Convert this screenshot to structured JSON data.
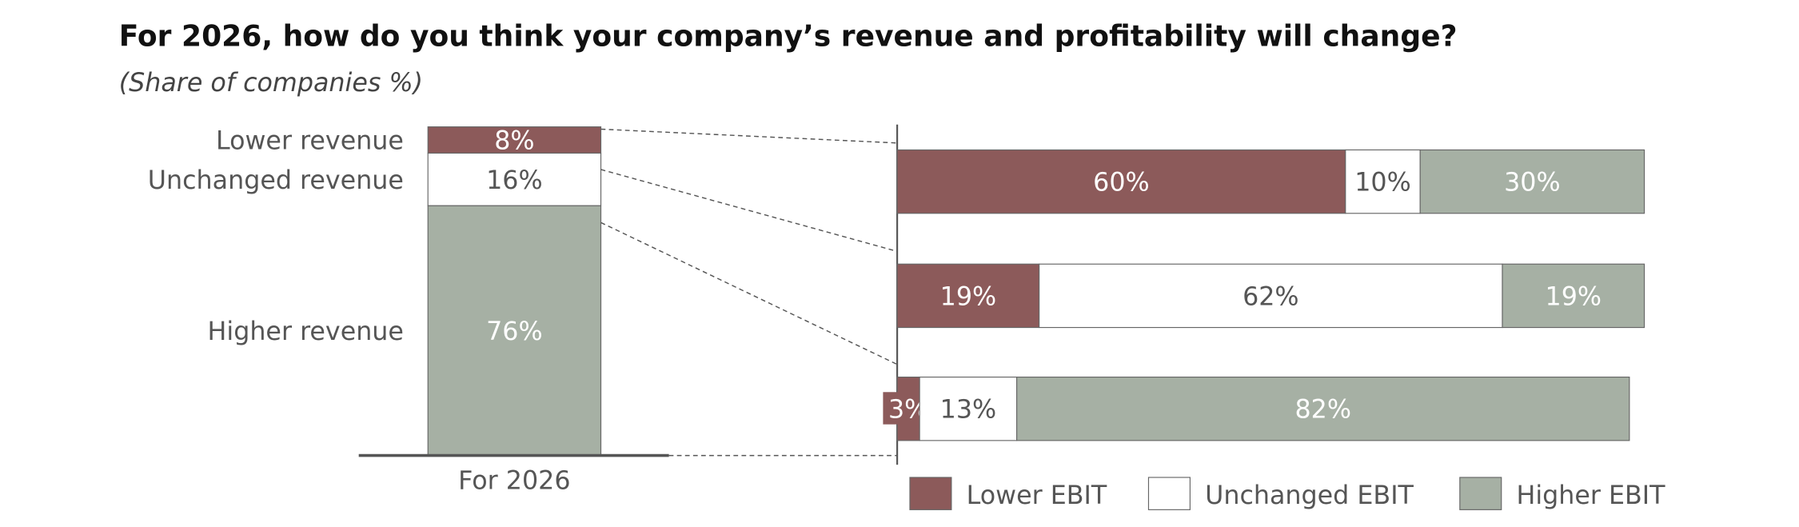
{
  "chart_data": {
    "type": "bar",
    "title": "For 2026, how do you think your company’s revenue and profitability will change?",
    "subtitle": "(Share of companies %)",
    "colors": {
      "lower": "#8c5a5a",
      "unchanged": "#ffffff",
      "higher": "#a6b0a4",
      "text": "#555555"
    },
    "revenue": {
      "category": "For 2026",
      "segments": [
        {
          "name": "Lower revenue",
          "value": 8,
          "label": "8%",
          "color_key": "lower"
        },
        {
          "name": "Unchanged revenue",
          "value": 16,
          "label": "16%",
          "color_key": "unchanged"
        },
        {
          "name": "Higher revenue",
          "value": 76,
          "label": "76%",
          "color_key": "higher"
        }
      ]
    },
    "ebit_breakdown": [
      {
        "revenue_group": "Lower revenue",
        "values": [
          60,
          10,
          30
        ],
        "labels": [
          "60%",
          "10%",
          "30%"
        ]
      },
      {
        "revenue_group": "Unchanged revenue",
        "values": [
          19,
          62,
          19
        ],
        "labels": [
          "19%",
          "62%",
          "19%"
        ]
      },
      {
        "revenue_group": "Higher revenue",
        "values": [
          3,
          13,
          82
        ],
        "labels": [
          "3%",
          "13%",
          "82%"
        ]
      }
    ],
    "legend": [
      {
        "label": "Lower EBIT",
        "color_key": "lower"
      },
      {
        "label": "Unchanged EBIT",
        "color_key": "unchanged"
      },
      {
        "label": "Higher EBIT",
        "color_key": "higher"
      }
    ],
    "legend_position": "bottom-right",
    "xlim": [
      0,
      100
    ]
  }
}
